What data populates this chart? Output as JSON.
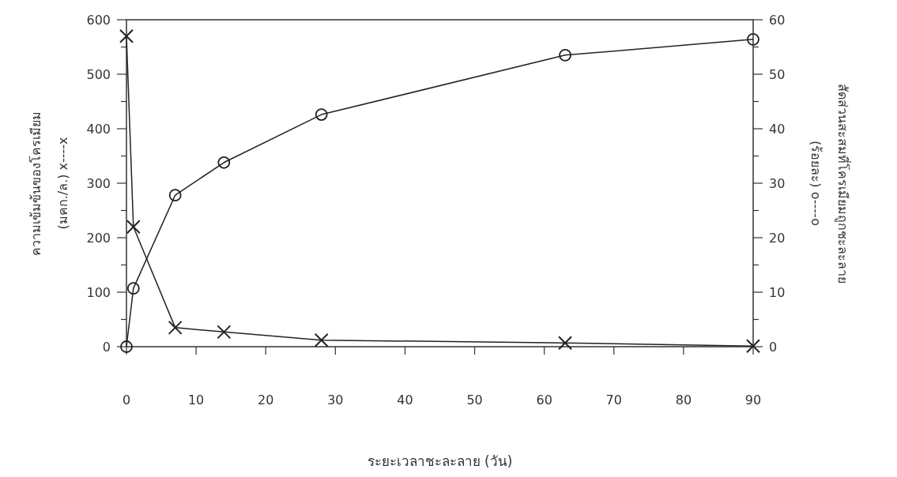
{
  "chart_data": {
    "type": "line",
    "xlabel": "ระยะเวลาชะละลาย (วัน)",
    "ylabel": "ความเข้มข้นของโครเมียม\n(มคก./ล.) x----x",
    "y2label": "สัดส่วนสะสมที่โครเมียมถูกชะละลาย\n(ร้อยละ) o----o",
    "x": [
      0,
      1,
      7,
      14,
      28,
      63,
      90
    ],
    "series": [
      {
        "color": "#222222",
        "marker": "cross",
        "values": [
          570,
          220,
          35,
          27,
          12,
          7,
          1
        ]
      },
      {
        "color": "#222222",
        "marker": "circle",
        "axis": "y2",
        "values": [
          0,
          10.7,
          27.8,
          33.8,
          42.6,
          53.5,
          56.4
        ]
      }
    ],
    "xlim": [
      0,
      90
    ],
    "xticks": [
      0,
      10,
      20,
      30,
      40,
      50,
      60,
      70,
      80,
      90
    ],
    "ylim": [
      0,
      600
    ],
    "yticks": [
      0,
      {
        "value": 50,
        "label": null
      },
      100,
      {
        "value": 150,
        "label": null
      },
      200,
      {
        "value": 250,
        "label": null
      },
      300,
      {
        "value": 350,
        "label": null
      },
      400,
      {
        "value": 450,
        "label": null
      },
      500,
      {
        "value": 550,
        "label": null
      },
      600
    ],
    "y2lim": [
      0,
      60
    ],
    "y2ticks": [
      0,
      {
        "value": 5,
        "label": null
      },
      10,
      {
        "value": 15,
        "label": null
      },
      20,
      {
        "value": 25,
        "label": null
      },
      30,
      {
        "value": 35,
        "label": null
      },
      40,
      {
        "value": 45,
        "label": null
      },
      50,
      {
        "value": 55,
        "label": null
      },
      60
    ]
  }
}
